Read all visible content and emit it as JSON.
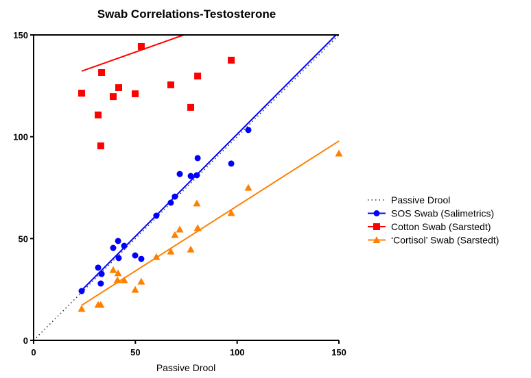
{
  "chart_data": {
    "type": "scatter",
    "title": "Swab Correlations-Testosterone",
    "xlabel": "Passive Drool",
    "ylabel": "",
    "xlim": [
      0,
      150
    ],
    "ylim": [
      0,
      150
    ],
    "xticks": [
      "0",
      "50",
      "100",
      "150"
    ],
    "yticks": [
      "0",
      "50",
      "100",
      "150"
    ],
    "grid": false,
    "legend_position": "right",
    "identity_line": {
      "name": "Passive Drool",
      "color": "#333333",
      "from": [
        0,
        0
      ],
      "to": [
        150,
        150
      ]
    },
    "series": [
      {
        "name": "SOS Swab (Salimetrics)",
        "marker": "circle",
        "color": "#0000ff",
        "points": [
          [
            23.6,
            24.2
          ],
          [
            31.7,
            35.7
          ],
          [
            33,
            27.9
          ],
          [
            33.4,
            32.6
          ],
          [
            39.1,
            45.4
          ],
          [
            41.5,
            48.8
          ],
          [
            41.8,
            40.4
          ],
          [
            44.5,
            46.4
          ],
          [
            49.9,
            41.7
          ],
          [
            52.9,
            40
          ],
          [
            60.3,
            61.2
          ],
          [
            67.4,
            67.6
          ],
          [
            69.4,
            70.6
          ],
          [
            71.8,
            81.7
          ],
          [
            77.2,
            80.7
          ],
          [
            80.2,
            81.1
          ],
          [
            80.6,
            89.5
          ],
          [
            97.1,
            86.8
          ],
          [
            105.5,
            103.3
          ]
        ],
        "fit": [
          [
            23.6,
            24.6
          ],
          [
            148.6,
            150
          ]
        ]
      },
      {
        "name": "Cotton Swab (Sarstedt)",
        "marker": "square",
        "color": "#ff0000",
        "points": [
          [
            23.6,
            121.4
          ],
          [
            31.7,
            110.7
          ],
          [
            33.4,
            131.5
          ],
          [
            33,
            95.5
          ],
          [
            39.1,
            119.7
          ],
          [
            41.8,
            124.1
          ],
          [
            49.9,
            121.1
          ],
          [
            52.9,
            144.3
          ],
          [
            67.4,
            125.5
          ],
          [
            77.2,
            114.4
          ],
          [
            80.6,
            129.8
          ],
          [
            97.1,
            137.6
          ]
        ],
        "fit": [
          [
            23.6,
            132.2
          ],
          [
            73.8,
            150
          ]
        ]
      },
      {
        "name": "‘Cortisol’ Swab (Sarstedt)",
        "marker": "triangle",
        "color": "#ff8000",
        "points": [
          [
            23.6,
            15.5
          ],
          [
            31.7,
            17.5
          ],
          [
            33,
            17.5
          ],
          [
            39.1,
            34.6
          ],
          [
            41.5,
            33
          ],
          [
            41.2,
            29.6
          ],
          [
            44.5,
            29.6
          ],
          [
            49.9,
            24.9
          ],
          [
            52.9,
            28.9
          ],
          [
            60.3,
            41
          ],
          [
            67.4,
            43.7
          ],
          [
            69.4,
            51.8
          ],
          [
            71.8,
            54.5
          ],
          [
            77.2,
            44.7
          ],
          [
            80.2,
            67.3
          ],
          [
            80.6,
            55.2
          ],
          [
            97.1,
            62.6
          ],
          [
            105.5,
            75
          ],
          [
            150,
            91.8
          ]
        ],
        "fit": [
          [
            23.6,
            17.2
          ],
          [
            150,
            97.9
          ]
        ]
      }
    ]
  }
}
